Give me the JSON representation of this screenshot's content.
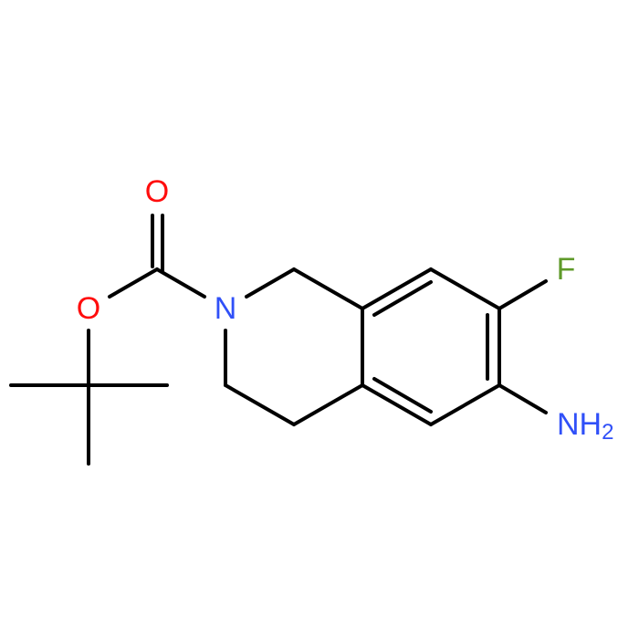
{
  "nodes": [
    {
      "label": "O"
    },
    {
      "label": "O"
    },
    {
      "label": "N"
    },
    {
      "label": "F"
    },
    {
      "label": "NH",
      "subscript": "2"
    }
  ]
}
